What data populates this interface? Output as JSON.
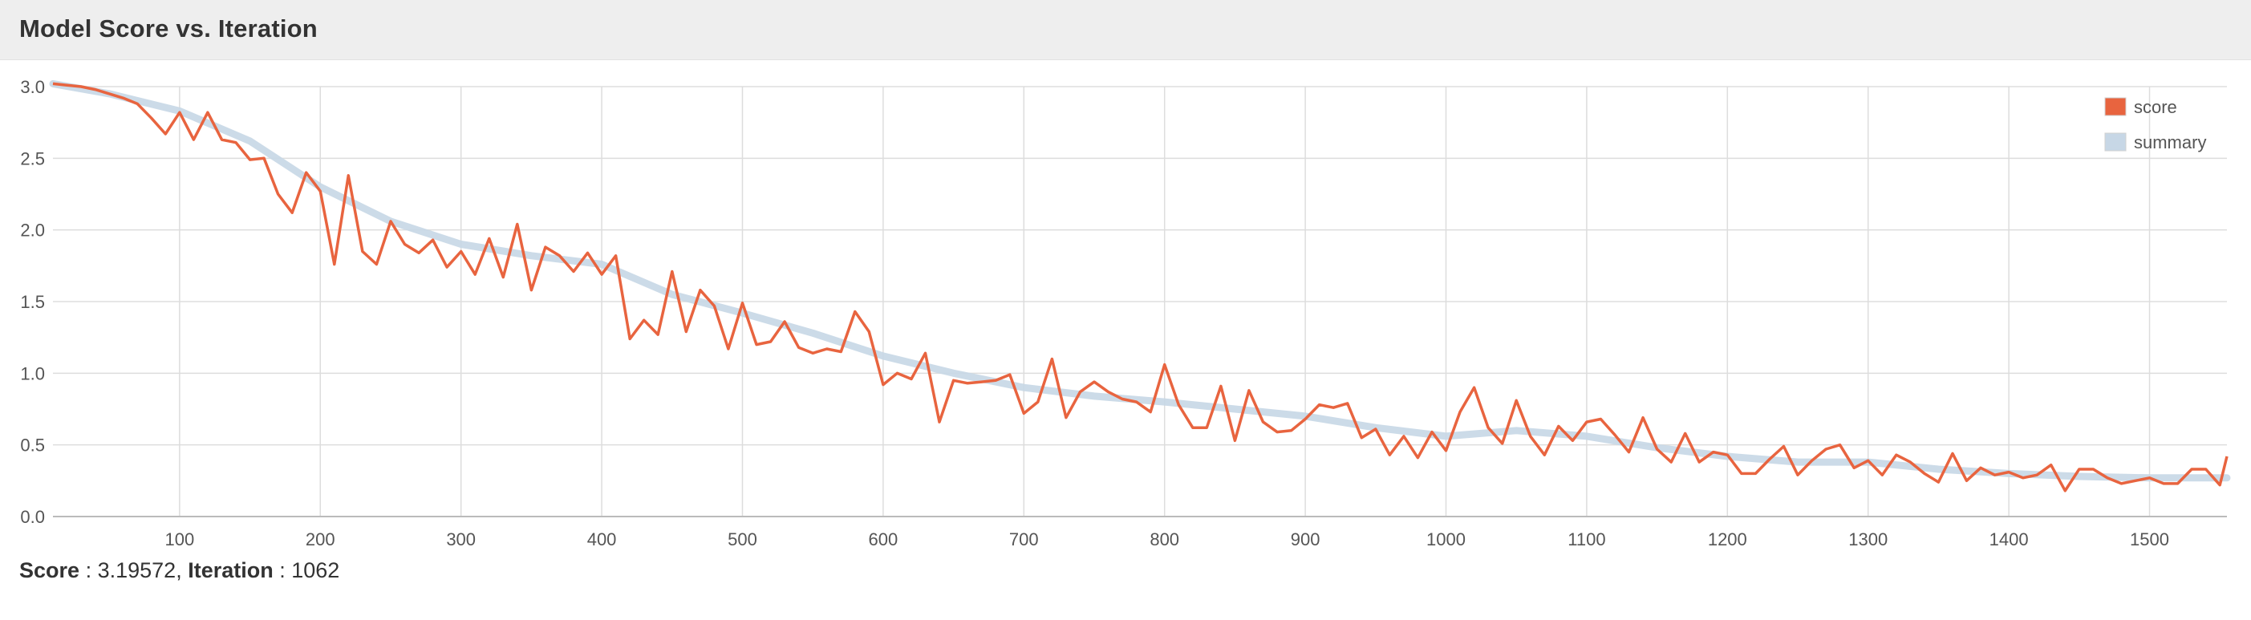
{
  "panel": {
    "title": "Model Score vs. Iteration"
  },
  "footer": {
    "score_label": "Score",
    "score_value": "3.19572",
    "iteration_label": "Iteration",
    "iteration_value": "1062"
  },
  "colors": {
    "score": "#e8643f",
    "summary": "#c7d7e6",
    "grid": "#dddddd",
    "axis": "#bbbbbb",
    "header_bg": "#eeeeee"
  },
  "chart_data": {
    "type": "line",
    "xlim": [
      10,
      1555
    ],
    "ylim": [
      0,
      3
    ],
    "xticks": [
      100,
      200,
      300,
      400,
      500,
      600,
      700,
      800,
      900,
      1000,
      1100,
      1200,
      1300,
      1400,
      1500
    ],
    "yticks": [
      "0.0",
      "0.5",
      "1.0",
      "1.5",
      "2.0",
      "2.5",
      "3.0"
    ],
    "grid": true,
    "legend_position": "top-right",
    "series": [
      {
        "name": "score",
        "color": "#e8643f",
        "x": [
          10,
          20,
          30,
          40,
          50,
          60,
          70,
          80,
          90,
          100,
          110,
          120,
          130,
          140,
          150,
          160,
          170,
          180,
          190,
          200,
          210,
          220,
          230,
          240,
          250,
          260,
          270,
          280,
          290,
          300,
          310,
          320,
          330,
          340,
          350,
          360,
          370,
          380,
          390,
          400,
          410,
          420,
          430,
          440,
          450,
          460,
          470,
          480,
          490,
          500,
          510,
          520,
          530,
          540,
          550,
          560,
          570,
          580,
          590,
          600,
          610,
          620,
          630,
          640,
          650,
          660,
          670,
          680,
          690,
          700,
          710,
          720,
          730,
          740,
          750,
          760,
          770,
          780,
          790,
          800,
          810,
          820,
          830,
          840,
          850,
          860,
          870,
          880,
          890,
          900,
          910,
          920,
          930,
          940,
          950,
          960,
          970,
          980,
          990,
          1000,
          1010,
          1020,
          1030,
          1040,
          1050,
          1060,
          1070,
          1080,
          1090,
          1100,
          1110,
          1120,
          1130,
          1140,
          1150,
          1160,
          1170,
          1180,
          1190,
          1200,
          1210,
          1220,
          1230,
          1240,
          1250,
          1260,
          1270,
          1280,
          1290,
          1300,
          1310,
          1320,
          1330,
          1340,
          1350,
          1360,
          1370,
          1380,
          1390,
          1400,
          1410,
          1420,
          1430,
          1440,
          1450,
          1460,
          1470,
          1480,
          1490,
          1500,
          1510,
          1520,
          1530,
          1540,
          1550,
          1555
        ],
        "y": [
          3.02,
          3.01,
          3.0,
          2.98,
          2.95,
          2.92,
          2.88,
          2.78,
          2.67,
          2.82,
          2.63,
          2.82,
          2.63,
          2.61,
          2.49,
          2.5,
          2.25,
          2.12,
          2.4,
          2.27,
          1.76,
          2.38,
          1.85,
          1.76,
          2.06,
          1.9,
          1.84,
          1.93,
          1.74,
          1.85,
          1.69,
          1.94,
          1.67,
          2.04,
          1.58,
          1.88,
          1.82,
          1.71,
          1.84,
          1.69,
          1.82,
          1.24,
          1.37,
          1.27,
          1.71,
          1.29,
          1.58,
          1.47,
          1.17,
          1.49,
          1.2,
          1.22,
          1.36,
          1.18,
          1.14,
          1.17,
          1.15,
          1.43,
          1.29,
          0.92,
          1.0,
          0.96,
          1.14,
          0.66,
          0.95,
          0.93,
          0.94,
          0.95,
          0.99,
          0.72,
          0.8,
          1.1,
          0.69,
          0.87,
          0.94,
          0.87,
          0.82,
          0.8,
          0.73,
          1.06,
          0.78,
          0.62,
          0.62,
          0.91,
          0.53,
          0.88,
          0.66,
          0.59,
          0.6,
          0.68,
          0.78,
          0.76,
          0.79,
          0.55,
          0.61,
          0.43,
          0.56,
          0.41,
          0.59,
          0.46,
          0.73,
          0.9,
          0.62,
          0.51,
          0.81,
          0.56,
          0.43,
          0.63,
          0.53,
          0.66,
          0.68,
          0.57,
          0.45,
          0.69,
          0.47,
          0.38,
          0.58,
          0.38,
          0.45,
          0.43,
          0.3,
          0.3,
          0.4,
          0.49,
          0.29,
          0.39,
          0.47,
          0.5,
          0.34,
          0.39,
          0.29,
          0.43,
          0.38,
          0.3,
          0.24,
          0.44,
          0.25,
          0.34,
          0.29,
          0.31,
          0.27,
          0.29,
          0.36,
          0.18,
          0.33,
          0.33,
          0.27,
          0.23,
          0.25,
          0.27,
          0.23,
          0.23,
          0.33,
          0.33,
          0.22,
          0.42
        ]
      },
      {
        "name": "summary",
        "color": "#c7d7e6",
        "x": [
          10,
          50,
          100,
          150,
          200,
          250,
          300,
          350,
          400,
          450,
          500,
          550,
          600,
          650,
          700,
          750,
          800,
          850,
          900,
          950,
          1000,
          1050,
          1100,
          1150,
          1200,
          1250,
          1300,
          1350,
          1400,
          1450,
          1500,
          1555
        ],
        "y": [
          3.02,
          2.95,
          2.83,
          2.62,
          2.3,
          2.06,
          1.9,
          1.82,
          1.76,
          1.55,
          1.42,
          1.28,
          1.12,
          1.0,
          0.9,
          0.84,
          0.8,
          0.75,
          0.7,
          0.62,
          0.56,
          0.6,
          0.56,
          0.48,
          0.42,
          0.38,
          0.38,
          0.33,
          0.3,
          0.28,
          0.27,
          0.27
        ]
      }
    ]
  }
}
